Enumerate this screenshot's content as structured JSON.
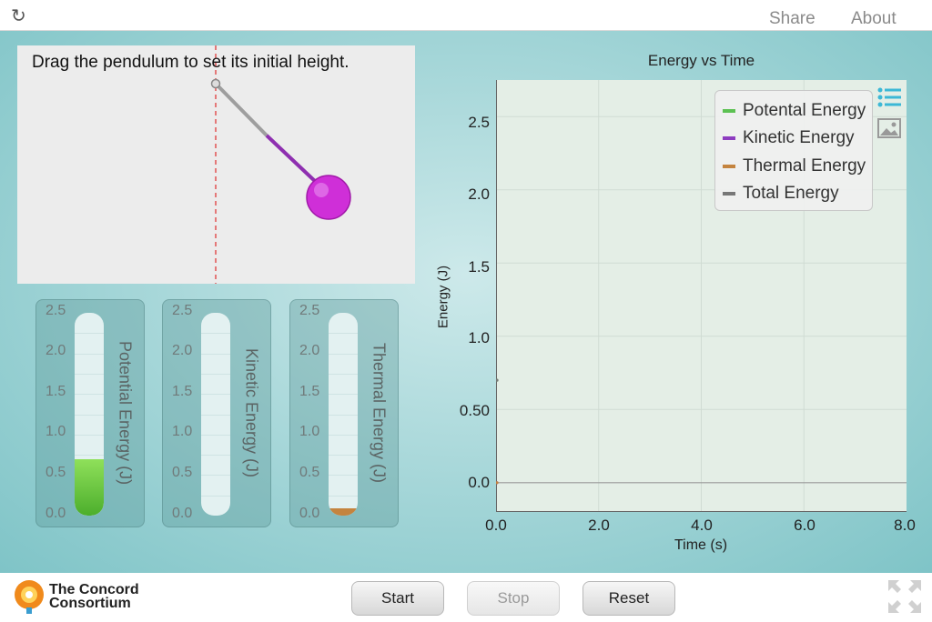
{
  "toolbar": {
    "share_label": "Share",
    "about_label": "About"
  },
  "simulation": {
    "instruction": "Drag the pendulum to set its initial height."
  },
  "energy_bars": {
    "ticks": [
      "2.5",
      "2.0",
      "1.5",
      "1.0",
      "0.5",
      "0.0"
    ],
    "bars": [
      {
        "title": "Potential Energy (J)",
        "value": 0.7,
        "color": "#4cae2c"
      },
      {
        "title": "Kinetic Energy (J)",
        "value": 0.0,
        "color": "#8e3cc0"
      },
      {
        "title": "Thermal Energy (J)",
        "value": 0.03,
        "color": "#c4843f"
      }
    ]
  },
  "chart": {
    "title": "Energy vs Time",
    "y_ticks": [
      "2.5",
      "2.0",
      "1.5",
      "1.0",
      "0.50",
      "0.0"
    ],
    "x_ticks": [
      "0.0",
      "2.0",
      "4.0",
      "6.0",
      "8.0"
    ],
    "xlabel": "Time (s)",
    "ylabel": "Energy (J)",
    "legend": [
      {
        "label": "Potental Energy",
        "color": "#5cc152"
      },
      {
        "label": "Kinetic Energy",
        "color": "#8e3cc0"
      },
      {
        "label": "Thermal Energy",
        "color": "#c4843f"
      },
      {
        "label": "Total Energy",
        "color": "#777777"
      }
    ]
  },
  "chart_data": {
    "type": "line",
    "title": "Energy vs Time",
    "xlabel": "Time (s)",
    "ylabel": "Energy (J)",
    "xlim": [
      0,
      8
    ],
    "ylim": [
      -0.2,
      2.75
    ],
    "grid": true,
    "legend_position": "top-right",
    "series": [
      {
        "name": "Potental Energy",
        "x": [
          0
        ],
        "y": [
          0.7
        ]
      },
      {
        "name": "Kinetic Energy",
        "x": [
          0
        ],
        "y": [
          0.0
        ]
      },
      {
        "name": "Thermal Energy",
        "x": [
          0
        ],
        "y": [
          0.0
        ]
      },
      {
        "name": "Total Energy",
        "x": [
          0
        ],
        "y": [
          0.7
        ]
      }
    ]
  },
  "controls": {
    "start_label": "Start",
    "stop_label": "Stop",
    "reset_label": "Reset"
  },
  "branding": {
    "logo_line1": "The Concord",
    "logo_line2": "Consortium"
  }
}
